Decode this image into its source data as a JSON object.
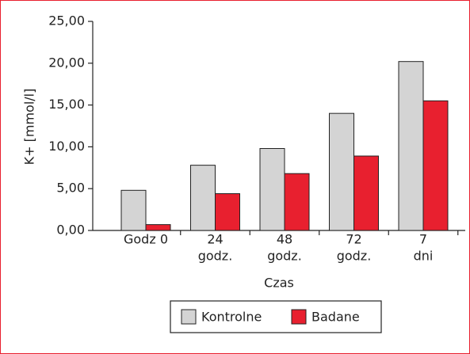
{
  "chart_data": {
    "type": "bar",
    "categories": [
      [
        "Godz 0"
      ],
      [
        "24",
        "godz."
      ],
      [
        "48",
        "godz."
      ],
      [
        "72",
        "godz."
      ],
      [
        "7",
        "dni"
      ]
    ],
    "series": [
      {
        "name": "Kontrolne",
        "color": "#d4d4d4",
        "values": [
          4.8,
          7.8,
          9.8,
          14.0,
          20.2
        ]
      },
      {
        "name": "Badane",
        "color": "#e8202f",
        "values": [
          0.7,
          4.4,
          6.8,
          8.9,
          15.5
        ]
      }
    ],
    "ylabel": "K+ [mmol/l]",
    "xlabel": "Czas",
    "ylim": [
      0,
      25
    ],
    "yticks": [
      {
        "value": 0,
        "label": "0,00"
      },
      {
        "value": 5,
        "label": "5,00"
      },
      {
        "value": 10,
        "label": "10,00"
      },
      {
        "value": 15,
        "label": "15,00"
      },
      {
        "value": 20,
        "label": "20,00"
      },
      {
        "value": 25,
        "label": "25,00"
      }
    ],
    "legend": "bottom"
  }
}
